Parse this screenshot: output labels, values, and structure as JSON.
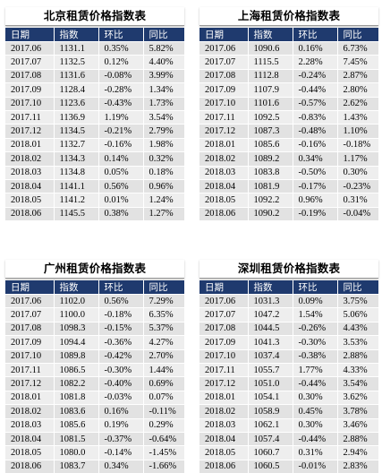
{
  "columns": [
    "日期",
    "指数",
    "环比",
    "同比"
  ],
  "panels": [
    {
      "title": "北京租赁价格指数表",
      "rows": [
        [
          "2017.06",
          "1131.1",
          "0.35%",
          "5.82%"
        ],
        [
          "2017.07",
          "1132.5",
          "0.12%",
          "4.40%"
        ],
        [
          "2017.08",
          "1131.6",
          "-0.08%",
          "3.99%"
        ],
        [
          "2017.09",
          "1128.4",
          "-0.28%",
          "1.34%"
        ],
        [
          "2017.10",
          "1123.6",
          "-0.43%",
          "1.73%"
        ],
        [
          "2017.11",
          "1136.9",
          "1.19%",
          "3.54%"
        ],
        [
          "2017.12",
          "1134.5",
          "-0.21%",
          "2.79%"
        ],
        [
          "2018.01",
          "1132.7",
          "-0.16%",
          "1.98%"
        ],
        [
          "2018.02",
          "1134.3",
          "0.14%",
          "0.32%"
        ],
        [
          "2018.03",
          "1134.8",
          "0.05%",
          "0.18%"
        ],
        [
          "2018.04",
          "1141.1",
          "0.56%",
          "0.96%"
        ],
        [
          "2018.05",
          "1141.2",
          "0.01%",
          "1.24%"
        ],
        [
          "2018.06",
          "1145.5",
          "0.38%",
          "1.27%"
        ]
      ]
    },
    {
      "title": "上海租赁价格指数表",
      "rows": [
        [
          "2017.06",
          "1090.6",
          "0.16%",
          "6.73%"
        ],
        [
          "2017.07",
          "1115.5",
          "2.28%",
          "7.45%"
        ],
        [
          "2017.08",
          "1112.8",
          "-0.24%",
          "2.87%"
        ],
        [
          "2017.09",
          "1107.9",
          "-0.44%",
          "2.80%"
        ],
        [
          "2017.10",
          "1101.6",
          "-0.57%",
          "2.62%"
        ],
        [
          "2017.11",
          "1092.5",
          "-0.83%",
          "1.43%"
        ],
        [
          "2017.12",
          "1087.3",
          "-0.48%",
          "1.10%"
        ],
        [
          "2018.01",
          "1085.6",
          "-0.16%",
          "-0.18%"
        ],
        [
          "2018.02",
          "1089.2",
          "0.34%",
          "1.17%"
        ],
        [
          "2018.03",
          "1083.8",
          "-0.50%",
          "0.30%"
        ],
        [
          "2018.04",
          "1081.9",
          "-0.17%",
          "-0.23%"
        ],
        [
          "2018.05",
          "1092.2",
          "0.96%",
          "0.31%"
        ],
        [
          "2018.06",
          "1090.2",
          "-0.19%",
          "-0.04%"
        ]
      ]
    },
    {
      "title": "广州租赁价格指数表",
      "rows": [
        [
          "2017.06",
          "1102.0",
          "0.56%",
          "7.29%"
        ],
        [
          "2017.07",
          "1100.0",
          "-0.18%",
          "6.35%"
        ],
        [
          "2017.08",
          "1098.3",
          "-0.15%",
          "5.37%"
        ],
        [
          "2017.09",
          "1094.4",
          "-0.36%",
          "4.27%"
        ],
        [
          "2017.10",
          "1089.8",
          "-0.42%",
          "2.70%"
        ],
        [
          "2017.11",
          "1086.5",
          "-0.30%",
          "1.44%"
        ],
        [
          "2017.12",
          "1082.2",
          "-0.40%",
          "0.69%"
        ],
        [
          "2018.01",
          "1081.8",
          "-0.03%",
          "0.07%"
        ],
        [
          "2018.02",
          "1083.6",
          "0.16%",
          "-0.11%"
        ],
        [
          "2018.03",
          "1085.6",
          "0.19%",
          "0.29%"
        ],
        [
          "2018.04",
          "1081.5",
          "-0.37%",
          "-0.64%"
        ],
        [
          "2018.05",
          "1080.0",
          "-0.14%",
          "-1.45%"
        ],
        [
          "2018.06",
          "1083.7",
          "0.34%",
          "-1.66%"
        ]
      ]
    },
    {
      "title": "深圳租赁价格指数表",
      "rows": [
        [
          "2017.06",
          "1031.3",
          "0.09%",
          "3.75%"
        ],
        [
          "2017.07",
          "1047.2",
          "1.54%",
          "5.06%"
        ],
        [
          "2017.08",
          "1044.5",
          "-0.26%",
          "4.43%"
        ],
        [
          "2017.09",
          "1041.3",
          "-0.30%",
          "3.53%"
        ],
        [
          "2017.10",
          "1037.4",
          "-0.38%",
          "2.88%"
        ],
        [
          "2017.11",
          "1055.7",
          "1.77%",
          "4.33%"
        ],
        [
          "2017.12",
          "1051.0",
          "-0.44%",
          "3.54%"
        ],
        [
          "2018.01",
          "1054.1",
          "0.30%",
          "3.62%"
        ],
        [
          "2018.02",
          "1058.9",
          "0.45%",
          "3.78%"
        ],
        [
          "2018.03",
          "1062.1",
          "0.30%",
          "3.46%"
        ],
        [
          "2018.04",
          "1057.4",
          "-0.44%",
          "2.88%"
        ],
        [
          "2018.05",
          "1060.7",
          "0.31%",
          "2.94%"
        ],
        [
          "2018.06",
          "1060.5",
          "-0.01%",
          "2.83%"
        ]
      ]
    }
  ]
}
